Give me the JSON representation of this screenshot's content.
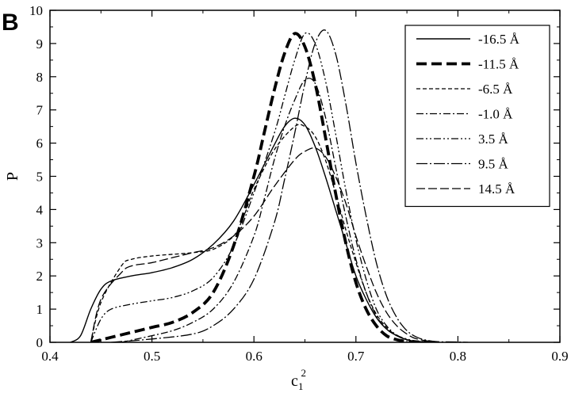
{
  "panel_label": "B",
  "chart_data": {
    "type": "line",
    "xlabel": "c",
    "xlabel_sub": "1",
    "xlabel_sup": "2",
    "ylabel": "P",
    "xlim": [
      0.4,
      0.9
    ],
    "ylim": [
      0,
      10
    ],
    "xticks": [
      "0.4",
      "0.5",
      "0.6",
      "0.7",
      "0.8",
      "0.9"
    ],
    "yticks": [
      "0",
      "1",
      "2",
      "3",
      "4",
      "5",
      "6",
      "7",
      "8",
      "9",
      "10"
    ],
    "legend_position": "top-right",
    "grid": false,
    "series": [
      {
        "name": "-16.5 Å",
        "style": "solid",
        "x": [
          0.42,
          0.43,
          0.44,
          0.45,
          0.46,
          0.48,
          0.5,
          0.52,
          0.54,
          0.56,
          0.58,
          0.6,
          0.62,
          0.63,
          0.64,
          0.65,
          0.66,
          0.67,
          0.68,
          0.69,
          0.7,
          0.71,
          0.72,
          0.73,
          0.74,
          0.75,
          0.76,
          0.78
        ],
        "y": [
          0,
          0.2,
          1.0,
          1.6,
          1.85,
          2.0,
          2.1,
          2.25,
          2.5,
          2.95,
          3.65,
          4.75,
          5.95,
          6.5,
          6.75,
          6.55,
          5.9,
          5.0,
          4.0,
          3.0,
          2.0,
          1.3,
          0.75,
          0.4,
          0.2,
          0.08,
          0.02,
          0
        ]
      },
      {
        "name": "-11.5 Å",
        "style": "heavy-dash",
        "x": [
          0.44,
          0.46,
          0.48,
          0.5,
          0.52,
          0.54,
          0.56,
          0.58,
          0.6,
          0.61,
          0.62,
          0.63,
          0.64,
          0.65,
          0.66,
          0.67,
          0.68,
          0.69,
          0.7,
          0.71,
          0.72,
          0.73,
          0.74,
          0.75,
          0.76,
          0.78
        ],
        "y": [
          0,
          0.15,
          0.3,
          0.45,
          0.6,
          0.9,
          1.5,
          2.9,
          5.0,
          6.3,
          7.6,
          8.7,
          9.3,
          8.9,
          7.8,
          6.2,
          4.5,
          3.0,
          1.8,
          1.0,
          0.5,
          0.2,
          0.08,
          0.03,
          0.01,
          0
        ]
      },
      {
        "name": "-6.5 Å",
        "style": "dash",
        "x": [
          0.44,
          0.45,
          0.47,
          0.48,
          0.5,
          0.52,
          0.54,
          0.56,
          0.58,
          0.59,
          0.6,
          0.62,
          0.64,
          0.65,
          0.66,
          0.67,
          0.68,
          0.69,
          0.7,
          0.71,
          0.72,
          0.73,
          0.74,
          0.75,
          0.76,
          0.78
        ],
        "y": [
          0,
          1.2,
          2.3,
          2.5,
          2.6,
          2.65,
          2.7,
          2.8,
          3.2,
          3.8,
          4.6,
          5.8,
          6.5,
          6.5,
          6.2,
          5.5,
          4.5,
          3.4,
          2.4,
          1.5,
          0.85,
          0.45,
          0.2,
          0.08,
          0.03,
          0
        ]
      },
      {
        "name": "-1.0 Å",
        "style": "dash-dot",
        "x": [
          0.47,
          0.5,
          0.52,
          0.54,
          0.56,
          0.58,
          0.6,
          0.61,
          0.62,
          0.63,
          0.64,
          0.65,
          0.66,
          0.67,
          0.68,
          0.69,
          0.7,
          0.71,
          0.72,
          0.73,
          0.74,
          0.75,
          0.76,
          0.78
        ],
        "y": [
          0,
          0.2,
          0.35,
          0.6,
          1.0,
          1.8,
          3.2,
          4.3,
          5.5,
          6.5,
          7.3,
          7.9,
          7.8,
          6.8,
          5.3,
          3.8,
          2.5,
          1.5,
          0.8,
          0.4,
          0.2,
          0.08,
          0.03,
          0
        ]
      },
      {
        "name": "3.5 Å",
        "style": "dash-dot-dot",
        "x": [
          0.44,
          0.45,
          0.46,
          0.48,
          0.5,
          0.52,
          0.54,
          0.56,
          0.58,
          0.6,
          0.62,
          0.63,
          0.64,
          0.65,
          0.66,
          0.67,
          0.68,
          0.69,
          0.7,
          0.71,
          0.72,
          0.73,
          0.74,
          0.75,
          0.76,
          0.78
        ],
        "y": [
          0,
          0.7,
          1.0,
          1.15,
          1.25,
          1.35,
          1.55,
          1.95,
          2.9,
          4.5,
          6.3,
          7.4,
          8.5,
          9.3,
          9.0,
          7.9,
          6.3,
          4.6,
          3.1,
          1.9,
          1.0,
          0.5,
          0.22,
          0.1,
          0.04,
          0
        ]
      },
      {
        "name": "9.5 Å",
        "style": "dash-dot-long",
        "x": [
          0.46,
          0.5,
          0.54,
          0.56,
          0.58,
          0.6,
          0.62,
          0.63,
          0.64,
          0.65,
          0.66,
          0.67,
          0.68,
          0.69,
          0.7,
          0.71,
          0.72,
          0.73,
          0.74,
          0.75,
          0.76,
          0.77,
          0.78,
          0.8,
          0.81
        ],
        "y": [
          0,
          0.1,
          0.25,
          0.5,
          1.0,
          1.9,
          3.6,
          4.9,
          6.3,
          7.8,
          9.0,
          9.4,
          8.7,
          7.2,
          5.4,
          3.8,
          2.4,
          1.4,
          0.75,
          0.35,
          0.15,
          0.06,
          0.02,
          0.01,
          0
        ]
      },
      {
        "name": "14.5 Å",
        "style": "long-dash",
        "x": [
          0.44,
          0.45,
          0.47,
          0.48,
          0.5,
          0.52,
          0.54,
          0.56,
          0.58,
          0.6,
          0.62,
          0.64,
          0.65,
          0.66,
          0.67,
          0.68,
          0.69,
          0.7,
          0.71,
          0.72,
          0.73,
          0.74,
          0.75,
          0.76,
          0.78
        ],
        "y": [
          0,
          1.3,
          2.1,
          2.3,
          2.4,
          2.55,
          2.7,
          2.85,
          3.2,
          3.8,
          4.7,
          5.5,
          5.75,
          5.85,
          5.6,
          5.0,
          4.2,
          3.2,
          2.3,
          1.5,
          0.9,
          0.5,
          0.25,
          0.1,
          0
        ]
      }
    ]
  }
}
